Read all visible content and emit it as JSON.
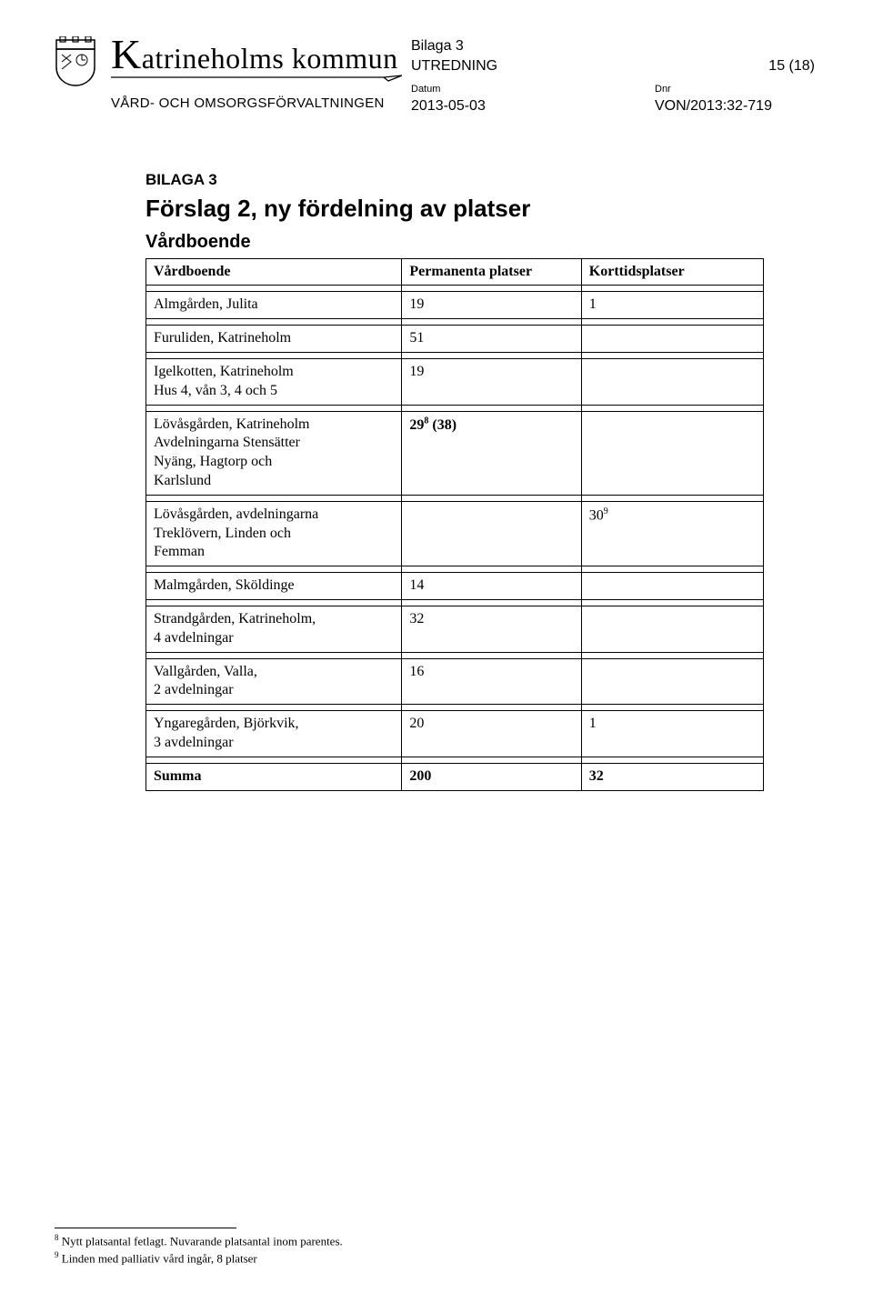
{
  "header": {
    "municipality_k": "K",
    "municipality_rest": "atrineholms kommun",
    "forvaltning": "VÅRD- OCH OMSORGSFÖRVALTNINGEN",
    "col3": {
      "bilaga": "Bilaga 3",
      "utredning": "UTREDNING",
      "datum_label": "Datum",
      "datum": "2013-05-03"
    },
    "col4": {
      "page": "15 (18)",
      "dnr_label": "Dnr",
      "dnr": "VON/2013:32-719"
    }
  },
  "content": {
    "bilaga": "BILAGA 3",
    "title": "Förslag 2, ny fördelning av platser",
    "subtitle": "Vårdboende"
  },
  "table": {
    "columns": [
      "Vårdboende",
      "Permanenta platser",
      "Korttidsplatser"
    ],
    "rows": [
      {
        "a": "",
        "b": "",
        "c": ""
      },
      {
        "a": "Almgården, Julita",
        "b": "19",
        "c": "1"
      },
      {
        "a": "",
        "b": "",
        "c": ""
      },
      {
        "a": "Furuliden, Katrineholm",
        "b": "51",
        "c": ""
      },
      {
        "a": "",
        "b": "",
        "c": ""
      },
      {
        "a": "Igelkotten, Katrineholm\nHus 4, vån 3, 4 och 5",
        "b": "19",
        "c": ""
      },
      {
        "a": "",
        "b": "",
        "c": ""
      },
      {
        "a_html": "Lövåsgården, Katrineholm\nAvdelningarna Stensätter\nNyäng, Hagtorp och\nKarlslund",
        "b_html": "29<span class='sup'>8</span> (38)",
        "c": ""
      },
      {
        "a": "",
        "b": "",
        "c": ""
      },
      {
        "a": "Lövåsgården, avdelningarna\nTreklövern, Linden och\nFemman",
        "b": "",
        "c_html": "30<span class='sup'>9</span>"
      },
      {
        "a": "",
        "b": "",
        "c": ""
      },
      {
        "a": "Malmgården, Sköldinge",
        "b": "14",
        "c": ""
      },
      {
        "a": "",
        "b": "",
        "c": ""
      },
      {
        "a": "Strandgården, Katrineholm,\n4 avdelningar",
        "b": "32",
        "c": ""
      },
      {
        "a": "",
        "b": "",
        "c": ""
      },
      {
        "a": "Vallgården, Valla,\n2 avdelningar",
        "b": "16",
        "c": ""
      },
      {
        "a": "",
        "b": "",
        "c": ""
      },
      {
        "a": "Yngaregården, Björkvik,\n3 avdelningar",
        "b": "20",
        "c": "1"
      },
      {
        "a": "",
        "b": "",
        "c": ""
      },
      {
        "a_bold": "Summa",
        "b_bold": "200",
        "c_bold": "32"
      }
    ]
  },
  "footnotes": {
    "items": [
      {
        "num": "8",
        "text": "Nytt platsantal fetlagt. Nuvarande platsantal inom parentes."
      },
      {
        "num": "9",
        "text": "Linden med palliativ vård ingår, 8 platser"
      }
    ]
  },
  "colors": {
    "text": "#000000",
    "bg": "#ffffff",
    "border": "#000000"
  }
}
